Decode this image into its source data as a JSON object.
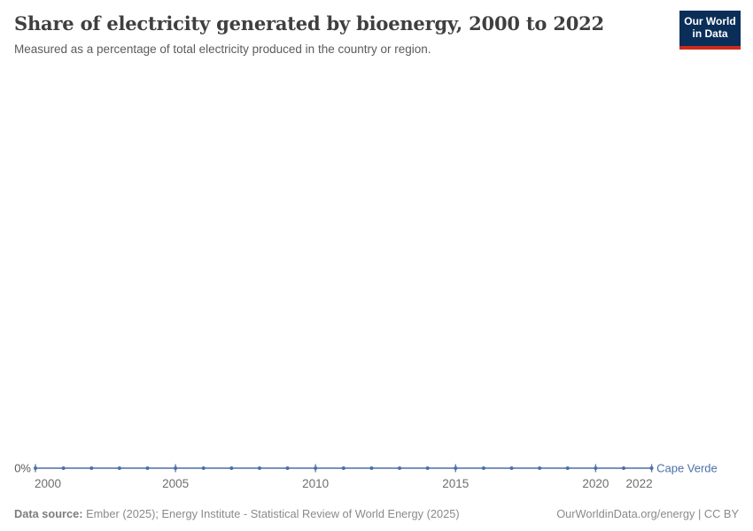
{
  "header": {
    "title": "Share of electricity generated by bioenergy, 2000 to 2022",
    "subtitle": "Measured as a percentage of total electricity produced in the country or region.",
    "logo": {
      "line1": "Our World",
      "line2": "in Data",
      "bg_color": "#0b2e59",
      "accent_color": "#cf2a1b"
    }
  },
  "chart_data": {
    "type": "line",
    "title": "Share of electricity generated by bioenergy, 2000 to 2022",
    "x": [
      2000,
      2001,
      2002,
      2003,
      2004,
      2005,
      2006,
      2007,
      2008,
      2009,
      2010,
      2011,
      2012,
      2013,
      2014,
      2015,
      2016,
      2017,
      2018,
      2019,
      2020,
      2021,
      2022
    ],
    "series": [
      {
        "name": "Cape Verde",
        "color": "#4c6ea9",
        "values": [
          0,
          0,
          0,
          0,
          0,
          0,
          0,
          0,
          0,
          0,
          0,
          0,
          0,
          0,
          0,
          0,
          0,
          0,
          0,
          0,
          0,
          0,
          0
        ]
      }
    ],
    "xlabel": "",
    "ylabel": "",
    "x_ticks": [
      2000,
      2005,
      2010,
      2015,
      2020,
      2022
    ],
    "y_tick_labels": [
      "0%"
    ],
    "ylim": [
      0,
      100
    ],
    "grid": false,
    "legend_position": "end-of-line",
    "marker": "dot-every-year",
    "axis_label_color": "#6e6e6e",
    "y_label_color": "#5a5a5a"
  },
  "footer": {
    "source_label": "Data source:",
    "source_text": "Ember (2025); Energy Institute - Statistical Review of World Energy (2025)",
    "rights": "OurWorldinData.org/energy | CC BY"
  }
}
